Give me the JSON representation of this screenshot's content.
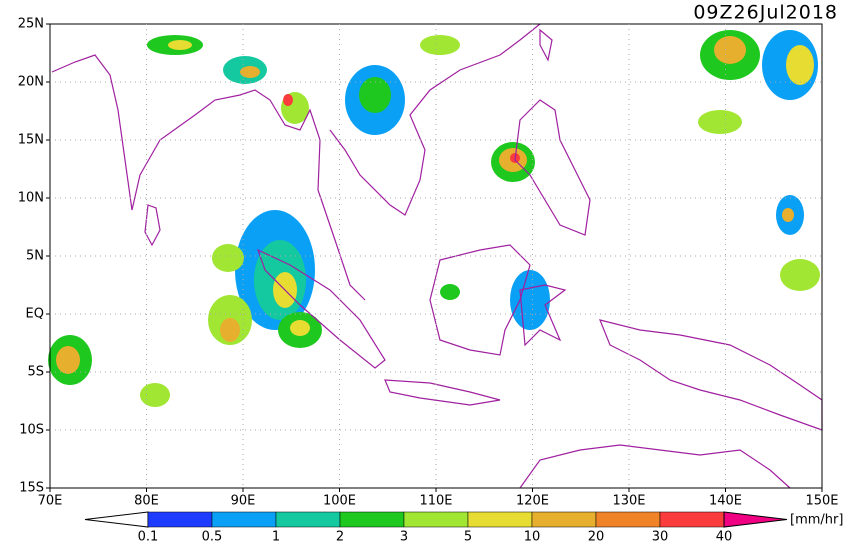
{
  "header": {
    "timestamp": "09Z26Jul2018"
  },
  "map": {
    "lat_labels": [
      "25N",
      "20N",
      "15N",
      "10N",
      "5N",
      "EQ",
      "5S",
      "10S",
      "15S"
    ],
    "lon_labels": [
      "70E",
      "80E",
      "90E",
      "100E",
      "110E",
      "120E",
      "130E",
      "140E",
      "150E"
    ]
  },
  "legend": {
    "labels": [
      "0.1",
      "0.5",
      "1",
      "2",
      "3",
      "5",
      "10",
      "20",
      "30",
      "40"
    ],
    "colors": [
      "#1e3cff",
      "#0aa0f5",
      "#14c8a0",
      "#1ec81e",
      "#a0e632",
      "#e6dc32",
      "#e6af2d",
      "#f08228",
      "#fa3c3c",
      "#f00082"
    ],
    "unit": "[mm/hr]"
  }
}
